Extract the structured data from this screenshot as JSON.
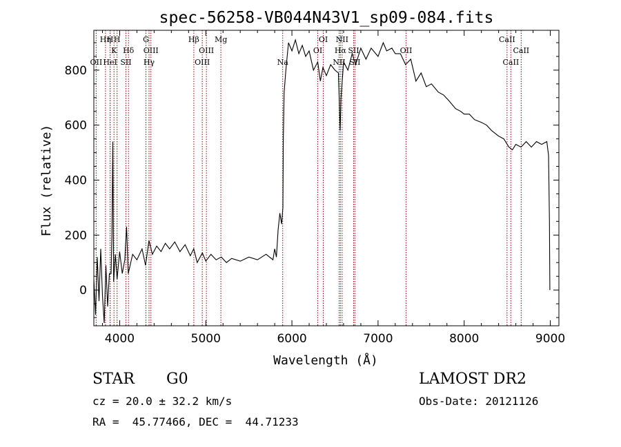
{
  "chart_data": {
    "type": "line",
    "title": "spec-56258-VB044N43V1_sp09-084.fits",
    "xlabel": "Wavelength (Å)",
    "ylabel": "Flux (relative)",
    "xlim": [
      3700,
      9100
    ],
    "ylim": [
      -130,
      945
    ],
    "xticks": [
      4000,
      5000,
      6000,
      7000,
      8000,
      9000
    ],
    "yticks": [
      0,
      200,
      400,
      600,
      800
    ],
    "grid": false,
    "series": [
      {
        "color": "#000000",
        "points": [
          [
            3700,
            40
          ],
          [
            3720,
            -90
          ],
          [
            3740,
            120
          ],
          [
            3760,
            -40
          ],
          [
            3780,
            150
          ],
          [
            3800,
            -20
          ],
          [
            3820,
            -120
          ],
          [
            3840,
            90
          ],
          [
            3860,
            -60
          ],
          [
            3880,
            60
          ],
          [
            3900,
            60
          ],
          [
            3910,
            200
          ],
          [
            3920,
            540
          ],
          [
            3930,
            30
          ],
          [
            3950,
            130
          ],
          [
            3970,
            40
          ],
          [
            4000,
            140
          ],
          [
            4030,
            60
          ],
          [
            4060,
            110
          ],
          [
            4080,
            230
          ],
          [
            4100,
            60
          ],
          [
            4150,
            130
          ],
          [
            4200,
            110
          ],
          [
            4260,
            150
          ],
          [
            4300,
            90
          ],
          [
            4340,
            180
          ],
          [
            4380,
            130
          ],
          [
            4430,
            160
          ],
          [
            4480,
            140
          ],
          [
            4530,
            170
          ],
          [
            4580,
            150
          ],
          [
            4640,
            175
          ],
          [
            4700,
            140
          ],
          [
            4760,
            165
          ],
          [
            4820,
            125
          ],
          [
            4860,
            150
          ],
          [
            4900,
            100
          ],
          [
            4960,
            135
          ],
          [
            5000,
            105
          ],
          [
            5060,
            130
          ],
          [
            5120,
            110
          ],
          [
            5180,
            120
          ],
          [
            5240,
            100
          ],
          [
            5300,
            115
          ],
          [
            5400,
            105
          ],
          [
            5500,
            120
          ],
          [
            5600,
            110
          ],
          [
            5700,
            130
          ],
          [
            5780,
            110
          ],
          [
            5800,
            150
          ],
          [
            5820,
            120
          ],
          [
            5840,
            220
          ],
          [
            5860,
            280
          ],
          [
            5880,
            240
          ],
          [
            5895,
            300
          ],
          [
            5900,
            550
          ],
          [
            5910,
            720
          ],
          [
            5930,
            800
          ],
          [
            5960,
            900
          ],
          [
            6000,
            870
          ],
          [
            6040,
            910
          ],
          [
            6080,
            860
          ],
          [
            6120,
            890
          ],
          [
            6160,
            850
          ],
          [
            6200,
            870
          ],
          [
            6250,
            800
          ],
          [
            6300,
            830
          ],
          [
            6330,
            760
          ],
          [
            6360,
            810
          ],
          [
            6400,
            780
          ],
          [
            6450,
            820
          ],
          [
            6500,
            800
          ],
          [
            6540,
            790
          ],
          [
            6560,
            580
          ],
          [
            6570,
            700
          ],
          [
            6600,
            830
          ],
          [
            6650,
            800
          ],
          [
            6700,
            860
          ],
          [
            6740,
            820
          ],
          [
            6800,
            880
          ],
          [
            6860,
            840
          ],
          [
            6920,
            880
          ],
          [
            7000,
            850
          ],
          [
            7060,
            900
          ],
          [
            7100,
            870
          ],
          [
            7160,
            880
          ],
          [
            7200,
            860
          ],
          [
            7260,
            860
          ],
          [
            7320,
            820
          ],
          [
            7380,
            840
          ],
          [
            7440,
            760
          ],
          [
            7500,
            790
          ],
          [
            7560,
            740
          ],
          [
            7620,
            750
          ],
          [
            7700,
            720
          ],
          [
            7760,
            710
          ],
          [
            7820,
            690
          ],
          [
            7900,
            660
          ],
          [
            7960,
            650
          ],
          [
            8000,
            640
          ],
          [
            8060,
            640
          ],
          [
            8120,
            620
          ],
          [
            8200,
            610
          ],
          [
            8260,
            600
          ],
          [
            8320,
            580
          ],
          [
            8400,
            560
          ],
          [
            8460,
            550
          ],
          [
            8520,
            520
          ],
          [
            8560,
            510
          ],
          [
            8600,
            530
          ],
          [
            8660,
            520
          ],
          [
            8720,
            540
          ],
          [
            8780,
            520
          ],
          [
            8840,
            540
          ],
          [
            8900,
            530
          ],
          [
            8960,
            540
          ],
          [
            8980,
            490
          ],
          [
            8990,
            250
          ],
          [
            8995,
            0
          ]
        ]
      }
    ],
    "spectral_lines": [
      {
        "label": "OII",
        "x": 3727,
        "row": 2
      },
      {
        "label": "Hη",
        "x": 3835,
        "row": 0
      },
      {
        "label": "H",
        "x": 3889,
        "row": 0
      },
      {
        "label": "K",
        "x": 3934,
        "row": 1
      },
      {
        "label": "HeI",
        "x": 3889,
        "row": 2
      },
      {
        "label": "H",
        "x": 3970,
        "row": 0
      },
      {
        "label": "SII",
        "x": 4072,
        "row": 2
      },
      {
        "label": "Hδ",
        "x": 4102,
        "row": 1
      },
      {
        "label": "G",
        "x": 4305,
        "row": 0
      },
      {
        "label": "OIII",
        "x": 4363,
        "row": 1
      },
      {
        "label": "Hγ",
        "x": 4341,
        "row": 2
      },
      {
        "label": "Hβ",
        "x": 4861,
        "row": 0
      },
      {
        "label": "OIII",
        "x": 4959,
        "row": 2
      },
      {
        "label": "OIII",
        "x": 5007,
        "row": 1
      },
      {
        "label": "Mg",
        "x": 5175,
        "row": 0
      },
      {
        "label": "Na",
        "x": 5893,
        "row": 2
      },
      {
        "label": "OI",
        "x": 6300,
        "row": 1
      },
      {
        "label": "OI",
        "x": 6364,
        "row": 0
      },
      {
        "label": "NII",
        "x": 6548,
        "row": 2
      },
      {
        "label": "Hα",
        "x": 6563,
        "row": 1
      },
      {
        "label": "NII",
        "x": 6583,
        "row": 0
      },
      {
        "label": "SII",
        "x": 6716,
        "row": 1
      },
      {
        "label": "SII",
        "x": 6731,
        "row": 2
      },
      {
        "label": "OII",
        "x": 7325,
        "row": 1
      },
      {
        "label": "CaII",
        "x": 8498,
        "row": 0
      },
      {
        "label": "CaII",
        "x": 8542,
        "row": 2
      },
      {
        "label": "CaII",
        "x": 8662,
        "row": 1
      }
    ],
    "marker_color": "#8b0000"
  },
  "info": {
    "class_label": "STAR",
    "subclass": "G0",
    "survey": "LAMOST DR2",
    "cz": "cz = 20.0 ± 32.2 km/s",
    "obs_date": "Obs-Date: 20121126",
    "coords": "RA =  45.77466, DEC =  44.71233"
  }
}
